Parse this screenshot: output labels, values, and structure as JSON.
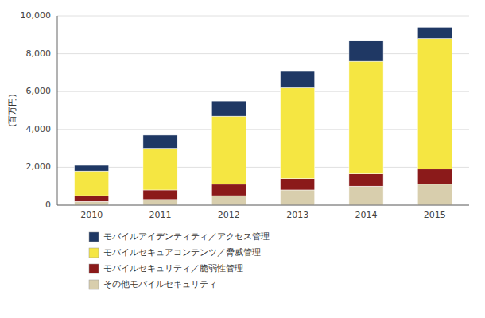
{
  "chart_data": {
    "type": "bar",
    "stacked": true,
    "categories": [
      "2010",
      "2011",
      "2012",
      "2013",
      "2014",
      "2015"
    ],
    "series": [
      {
        "name": "その他モバイルセキュリティ",
        "color": "#D8CEAD",
        "values": [
          200,
          300,
          500,
          800,
          1000,
          1100
        ]
      },
      {
        "name": "モバイルセキュリティ／脆弱性管理",
        "color": "#8B1A1A",
        "values": [
          300,
          500,
          600,
          600,
          650,
          800
        ]
      },
      {
        "name": "モバイルセキュアコンテンツ／脅威管理",
        "color": "#F5E642",
        "values": [
          1300,
          2200,
          3600,
          4800,
          5950,
          6900
        ]
      },
      {
        "name": "モバイルアイデンティティ／アクセス管理",
        "color": "#1F3864",
        "values": [
          300,
          700,
          800,
          900,
          1100,
          600
        ]
      }
    ],
    "ylabel": "(百万円)",
    "ylim": [
      0,
      10000
    ],
    "yticks": [
      0,
      {
        "value": 2000,
        "label": "2,000"
      },
      {
        "value": 4000,
        "label": "4,000"
      },
      {
        "value": 6000,
        "label": "6,000"
      },
      {
        "value": 8000,
        "label": "8,000"
      },
      {
        "value": 10000,
        "label": "10,000"
      }
    ],
    "grid": true,
    "legend": "bottom"
  }
}
